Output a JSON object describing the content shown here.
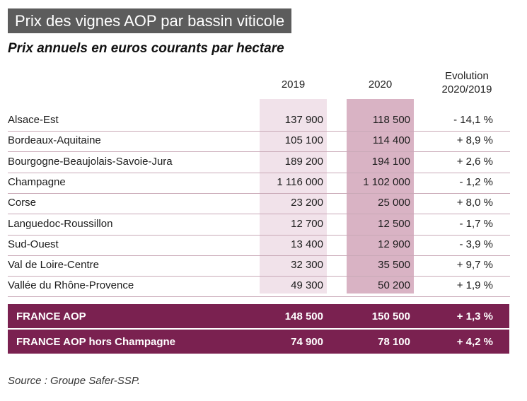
{
  "title": "Prix des vignes AOP par bassin viticole",
  "subtitle": "Prix annuels en euros courants par hectare",
  "chart_data": {
    "type": "table",
    "columns": [
      "",
      "2019",
      "2020",
      "Evolution\n2020/2019"
    ],
    "header_evolution_line1": "Evolution",
    "header_evolution_line2": "2020/2019",
    "rows": [
      {
        "label": "Alsace-Est",
        "v2019": "137 900",
        "v2020": "118 500",
        "evol": "- 14,1 %"
      },
      {
        "label": "Bordeaux-Aquitaine",
        "v2019": "105 100",
        "v2020": "114 400",
        "evol": "+ 8,9 %"
      },
      {
        "label": "Bourgogne-Beaujolais-Savoie-Jura",
        "v2019": "189 200",
        "v2020": "194 100",
        "evol": "+ 2,6 %"
      },
      {
        "label": "Champagne",
        "v2019": "1 116 000",
        "v2020": "1 102 000",
        "evol": "- 1,2 %"
      },
      {
        "label": "Corse",
        "v2019": "23 200",
        "v2020": "25 000",
        "evol": "+ 8,0 %"
      },
      {
        "label": "Languedoc-Roussillon",
        "v2019": "12 700",
        "v2020": "12 500",
        "evol": "- 1,7 %"
      },
      {
        "label": "Sud-Ouest",
        "v2019": "13 400",
        "v2020": "12 900",
        "evol": "- 3,9 %"
      },
      {
        "label": "Val de Loire-Centre",
        "v2019": "32 300",
        "v2020": "35 500",
        "evol": "+ 9,7 %"
      },
      {
        "label": "Vallée du Rhône-Provence",
        "v2019": "49 300",
        "v2020": "50 200",
        "evol": "+ 1,9 %"
      }
    ],
    "totals": [
      {
        "label": "FRANCE AOP",
        "v2019": "148 500",
        "v2020": "150 500",
        "evol": "+ 1,3 %"
      },
      {
        "label": "FRANCE AOP hors Champagne",
        "v2019": "74 900",
        "v2020": "78 100",
        "evol": "+ 4,2 %"
      }
    ]
  },
  "source": "Source : Groupe Safer-SSP.",
  "colors": {
    "title_bg": "#5c5c5c",
    "col_2019_bg": "#f1e2ea",
    "col_2020_bg": "#d9b3c4",
    "total_bg": "#7a2150",
    "row_border": "#c9a9b7"
  }
}
